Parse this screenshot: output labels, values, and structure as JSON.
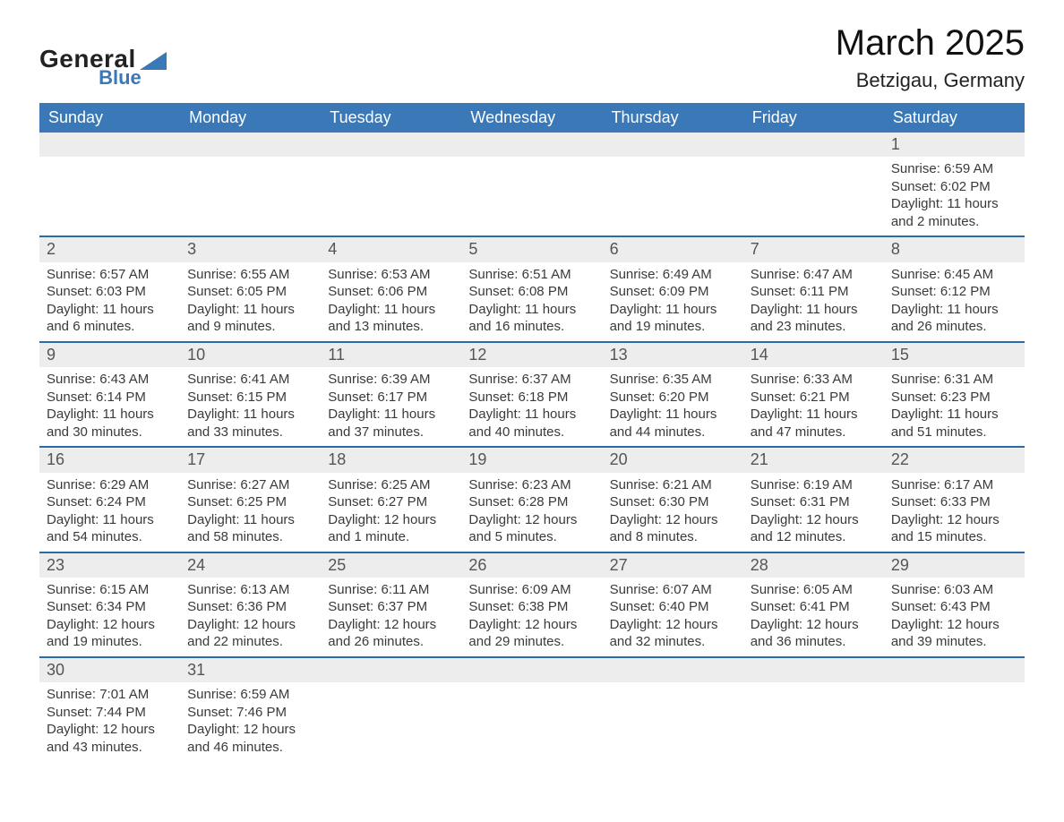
{
  "logo": {
    "line1": "General",
    "line2": "Blue",
    "icon_color": "#3b78b8"
  },
  "header": {
    "title": "March 2025",
    "location": "Betzigau, Germany"
  },
  "colors": {
    "header_blue": "#3b78b8",
    "row_stripe": "#ededed",
    "divider": "#2f6aa8",
    "background": "#ffffff",
    "text": "#2b2b2b"
  },
  "calendar": {
    "type": "table",
    "day_headers": [
      "Sunday",
      "Monday",
      "Tuesday",
      "Wednesday",
      "Thursday",
      "Friday",
      "Saturday"
    ],
    "weeks": [
      [
        null,
        null,
        null,
        null,
        null,
        null,
        {
          "day": "1",
          "sunrise": "Sunrise: 6:59 AM",
          "sunset": "Sunset: 6:02 PM",
          "daylight1": "Daylight: 11 hours",
          "daylight2": "and 2 minutes."
        }
      ],
      [
        {
          "day": "2",
          "sunrise": "Sunrise: 6:57 AM",
          "sunset": "Sunset: 6:03 PM",
          "daylight1": "Daylight: 11 hours",
          "daylight2": "and 6 minutes."
        },
        {
          "day": "3",
          "sunrise": "Sunrise: 6:55 AM",
          "sunset": "Sunset: 6:05 PM",
          "daylight1": "Daylight: 11 hours",
          "daylight2": "and 9 minutes."
        },
        {
          "day": "4",
          "sunrise": "Sunrise: 6:53 AM",
          "sunset": "Sunset: 6:06 PM",
          "daylight1": "Daylight: 11 hours",
          "daylight2": "and 13 minutes."
        },
        {
          "day": "5",
          "sunrise": "Sunrise: 6:51 AM",
          "sunset": "Sunset: 6:08 PM",
          "daylight1": "Daylight: 11 hours",
          "daylight2": "and 16 minutes."
        },
        {
          "day": "6",
          "sunrise": "Sunrise: 6:49 AM",
          "sunset": "Sunset: 6:09 PM",
          "daylight1": "Daylight: 11 hours",
          "daylight2": "and 19 minutes."
        },
        {
          "day": "7",
          "sunrise": "Sunrise: 6:47 AM",
          "sunset": "Sunset: 6:11 PM",
          "daylight1": "Daylight: 11 hours",
          "daylight2": "and 23 minutes."
        },
        {
          "day": "8",
          "sunrise": "Sunrise: 6:45 AM",
          "sunset": "Sunset: 6:12 PM",
          "daylight1": "Daylight: 11 hours",
          "daylight2": "and 26 minutes."
        }
      ],
      [
        {
          "day": "9",
          "sunrise": "Sunrise: 6:43 AM",
          "sunset": "Sunset: 6:14 PM",
          "daylight1": "Daylight: 11 hours",
          "daylight2": "and 30 minutes."
        },
        {
          "day": "10",
          "sunrise": "Sunrise: 6:41 AM",
          "sunset": "Sunset: 6:15 PM",
          "daylight1": "Daylight: 11 hours",
          "daylight2": "and 33 minutes."
        },
        {
          "day": "11",
          "sunrise": "Sunrise: 6:39 AM",
          "sunset": "Sunset: 6:17 PM",
          "daylight1": "Daylight: 11 hours",
          "daylight2": "and 37 minutes."
        },
        {
          "day": "12",
          "sunrise": "Sunrise: 6:37 AM",
          "sunset": "Sunset: 6:18 PM",
          "daylight1": "Daylight: 11 hours",
          "daylight2": "and 40 minutes."
        },
        {
          "day": "13",
          "sunrise": "Sunrise: 6:35 AM",
          "sunset": "Sunset: 6:20 PM",
          "daylight1": "Daylight: 11 hours",
          "daylight2": "and 44 minutes."
        },
        {
          "day": "14",
          "sunrise": "Sunrise: 6:33 AM",
          "sunset": "Sunset: 6:21 PM",
          "daylight1": "Daylight: 11 hours",
          "daylight2": "and 47 minutes."
        },
        {
          "day": "15",
          "sunrise": "Sunrise: 6:31 AM",
          "sunset": "Sunset: 6:23 PM",
          "daylight1": "Daylight: 11 hours",
          "daylight2": "and 51 minutes."
        }
      ],
      [
        {
          "day": "16",
          "sunrise": "Sunrise: 6:29 AM",
          "sunset": "Sunset: 6:24 PM",
          "daylight1": "Daylight: 11 hours",
          "daylight2": "and 54 minutes."
        },
        {
          "day": "17",
          "sunrise": "Sunrise: 6:27 AM",
          "sunset": "Sunset: 6:25 PM",
          "daylight1": "Daylight: 11 hours",
          "daylight2": "and 58 minutes."
        },
        {
          "day": "18",
          "sunrise": "Sunrise: 6:25 AM",
          "sunset": "Sunset: 6:27 PM",
          "daylight1": "Daylight: 12 hours",
          "daylight2": "and 1 minute."
        },
        {
          "day": "19",
          "sunrise": "Sunrise: 6:23 AM",
          "sunset": "Sunset: 6:28 PM",
          "daylight1": "Daylight: 12 hours",
          "daylight2": "and 5 minutes."
        },
        {
          "day": "20",
          "sunrise": "Sunrise: 6:21 AM",
          "sunset": "Sunset: 6:30 PM",
          "daylight1": "Daylight: 12 hours",
          "daylight2": "and 8 minutes."
        },
        {
          "day": "21",
          "sunrise": "Sunrise: 6:19 AM",
          "sunset": "Sunset: 6:31 PM",
          "daylight1": "Daylight: 12 hours",
          "daylight2": "and 12 minutes."
        },
        {
          "day": "22",
          "sunrise": "Sunrise: 6:17 AM",
          "sunset": "Sunset: 6:33 PM",
          "daylight1": "Daylight: 12 hours",
          "daylight2": "and 15 minutes."
        }
      ],
      [
        {
          "day": "23",
          "sunrise": "Sunrise: 6:15 AM",
          "sunset": "Sunset: 6:34 PM",
          "daylight1": "Daylight: 12 hours",
          "daylight2": "and 19 minutes."
        },
        {
          "day": "24",
          "sunrise": "Sunrise: 6:13 AM",
          "sunset": "Sunset: 6:36 PM",
          "daylight1": "Daylight: 12 hours",
          "daylight2": "and 22 minutes."
        },
        {
          "day": "25",
          "sunrise": "Sunrise: 6:11 AM",
          "sunset": "Sunset: 6:37 PM",
          "daylight1": "Daylight: 12 hours",
          "daylight2": "and 26 minutes."
        },
        {
          "day": "26",
          "sunrise": "Sunrise: 6:09 AM",
          "sunset": "Sunset: 6:38 PM",
          "daylight1": "Daylight: 12 hours",
          "daylight2": "and 29 minutes."
        },
        {
          "day": "27",
          "sunrise": "Sunrise: 6:07 AM",
          "sunset": "Sunset: 6:40 PM",
          "daylight1": "Daylight: 12 hours",
          "daylight2": "and 32 minutes."
        },
        {
          "day": "28",
          "sunrise": "Sunrise: 6:05 AM",
          "sunset": "Sunset: 6:41 PM",
          "daylight1": "Daylight: 12 hours",
          "daylight2": "and 36 minutes."
        },
        {
          "day": "29",
          "sunrise": "Sunrise: 6:03 AM",
          "sunset": "Sunset: 6:43 PM",
          "daylight1": "Daylight: 12 hours",
          "daylight2": "and 39 minutes."
        }
      ],
      [
        {
          "day": "30",
          "sunrise": "Sunrise: 7:01 AM",
          "sunset": "Sunset: 7:44 PM",
          "daylight1": "Daylight: 12 hours",
          "daylight2": "and 43 minutes."
        },
        {
          "day": "31",
          "sunrise": "Sunrise: 6:59 AM",
          "sunset": "Sunset: 7:46 PM",
          "daylight1": "Daylight: 12 hours",
          "daylight2": "and 46 minutes."
        },
        null,
        null,
        null,
        null,
        null
      ]
    ]
  }
}
